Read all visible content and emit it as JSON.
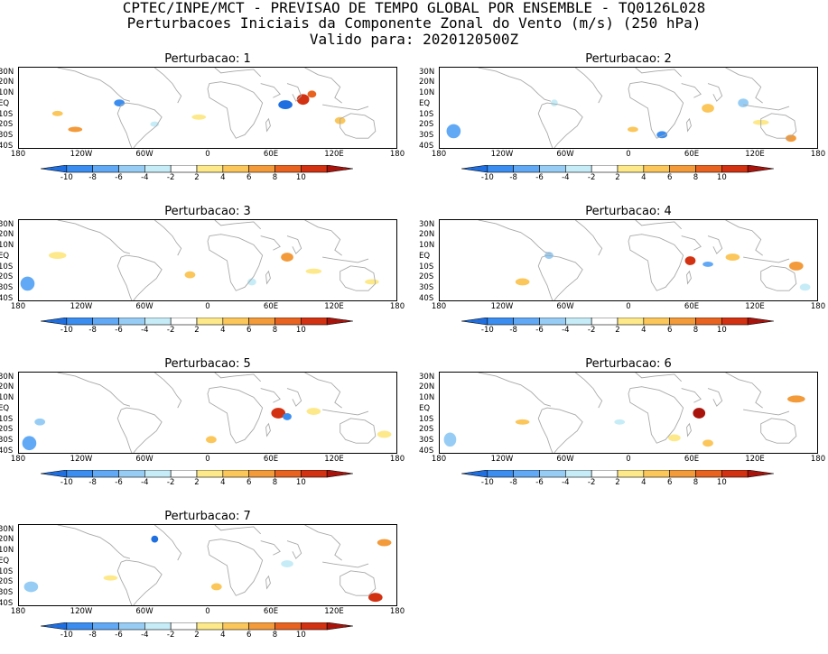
{
  "header": {
    "line1": "CPTEC/INPE/MCT - PREVISAO DE TEMPO GLOBAL POR ENSEMBLE - TQ0126L028",
    "line2": "Perturbacoes Iniciais da Componente Zonal do Vento (m/s) (250 hPa)",
    "line3": "Valido para: 2020120500Z"
  },
  "lat_labels": [
    "30N",
    "20N",
    "10N",
    "EQ",
    "10S",
    "20S",
    "30S",
    "40S"
  ],
  "lon_labels": [
    "180",
    "120W",
    "60W",
    "0",
    "60E",
    "120E",
    "180"
  ],
  "colorbar": {
    "labels": [
      "-10",
      "-8",
      "-6",
      "-4",
      "-2",
      "2",
      "4",
      "6",
      "8",
      "10"
    ],
    "colors": [
      "#1f6fe0",
      "#3b8ef0",
      "#62a9f5",
      "#97cdf5",
      "#c6ecf7",
      "#ffffff",
      "#fde98a",
      "#fbc65a",
      "#f39a3a",
      "#e8631f",
      "#d23112",
      "#a8140c"
    ]
  },
  "panels": [
    {
      "title": "Perturbacao: 1"
    },
    {
      "title": "Perturbacao: 2"
    },
    {
      "title": "Perturbacao: 3"
    },
    {
      "title": "Perturbacao: 4"
    },
    {
      "title": "Perturbacao: 5"
    },
    {
      "title": "Perturbacao: 6"
    },
    {
      "title": "Perturbacao: 7"
    }
  ]
}
